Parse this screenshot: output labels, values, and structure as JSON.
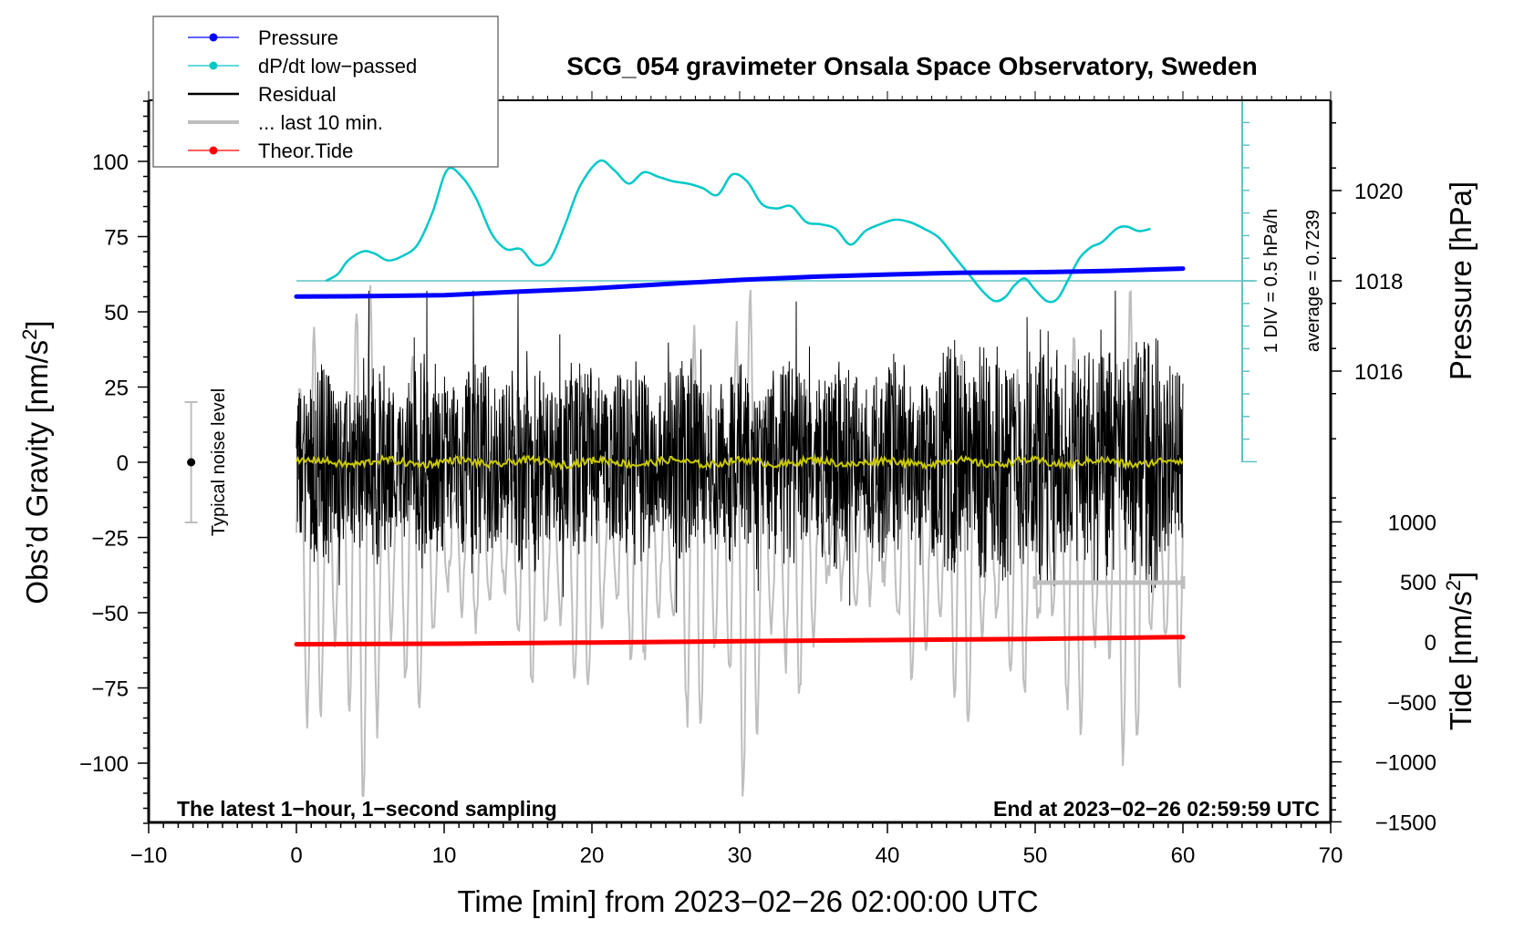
{
  "chart_data": {
    "type": "line",
    "title": "SCG_054 gravimeter Onsala Space Observatory, Sweden",
    "xlabel": "Time [min] from 2023−02−26 02:00:00 UTC",
    "ylabel_left": "Obs’d Gravity [nm/s²]",
    "ylabel_right_top": "Pressure [hPa]",
    "ylabel_right_bottom": "Tide [nm/s²]",
    "xlim": [
      -10,
      70
    ],
    "ylim_gravity": [
      -120,
      120
    ],
    "ylim_pressure": [
      1014,
      1022
    ],
    "ylim_tide": [
      -1500,
      1250
    ],
    "x_ticks": [
      -10,
      0,
      10,
      20,
      30,
      40,
      50,
      60,
      70
    ],
    "x_tick_labels": [
      "−10",
      "0",
      "10",
      "20",
      "30",
      "40",
      "50",
      "60",
      "70"
    ],
    "gravity_ticks": [
      100,
      75,
      50,
      25,
      0,
      -25,
      -50,
      -75,
      -100
    ],
    "gravity_tick_labels": [
      "100",
      "75",
      "50",
      "25",
      "0",
      "−25",
      "−50",
      "−75",
      "−100"
    ],
    "pressure_ticks": [
      1020,
      1018,
      1016
    ],
    "pressure_tick_labels": [
      "1020",
      "1018",
      "1016"
    ],
    "tide_ticks": [
      1000,
      500,
      0,
      -500,
      -1000,
      -1500
    ],
    "tide_tick_labels": [
      "1000",
      "500",
      "0",
      "−500",
      "−1000",
      "−1500"
    ],
    "legend": {
      "placement": "top-left",
      "entries": [
        {
          "label": "Pressure",
          "color": "#0000ff",
          "marker": "dot"
        },
        {
          "label": "dP/dt low−passed",
          "color": "#00c8c8",
          "marker": "dot"
        },
        {
          "label": "Residual",
          "color": "#000000",
          "marker": "line"
        },
        {
          "label": "... last 10 min.",
          "color": "#bebebe",
          "marker": "line"
        },
        {
          "label": "Theor.Tide",
          "color": "#ff0000",
          "marker": "dot"
        }
      ]
    },
    "series": [
      {
        "name": "Pressure",
        "axis": "pressure",
        "color": "#0000ff",
        "x": [
          0,
          5,
          10,
          15,
          20,
          25,
          30,
          35,
          40,
          45,
          50,
          55,
          60
        ],
        "values": [
          1017.65,
          1017.66,
          1017.68,
          1017.76,
          1017.83,
          1017.93,
          1018.02,
          1018.09,
          1018.14,
          1018.18,
          1018.19,
          1018.22,
          1018.27
        ]
      },
      {
        "name": "dP/dt low-passed",
        "axis": "dpdt_div",
        "color": "#00c8c8",
        "baseline_average": 0.7239,
        "div_size_hPa_per_h": 0.5,
        "x": [
          2,
          2.8,
          3.5,
          4.5,
          5.3,
          6.2,
          7.2,
          8.2,
          9.2,
          10.2,
          11.2,
          12.2,
          13.2,
          14.2,
          15.2,
          16.2,
          17.2,
          18.2,
          19.2,
          20.5,
          21.5,
          22.5,
          23.5,
          24.5,
          25.5,
          26.5,
          27.5,
          28.5,
          29.5,
          30.5,
          31.5,
          32.5,
          33.5,
          34.5,
          35.5,
          36.5,
          37.5,
          38.5,
          39.5,
          40.5,
          41.5,
          42.5,
          43.5,
          44.5,
          45.5,
          46.5,
          47.3,
          48.0,
          48.6,
          49.3,
          50.0,
          50.8,
          51.5,
          52.2,
          53.0,
          53.8,
          54.5,
          55.5,
          56.2,
          57.0,
          57.8
        ],
        "values": [
          0.0,
          0.3,
          0.9,
          1.3,
          1.2,
          0.9,
          1.1,
          1.6,
          3.0,
          4.9,
          4.6,
          3.6,
          2.1,
          1.4,
          1.4,
          0.7,
          1.0,
          2.5,
          4.2,
          5.3,
          4.9,
          4.3,
          4.8,
          4.6,
          4.4,
          4.3,
          4.1,
          3.8,
          4.7,
          4.4,
          3.4,
          3.2,
          3.3,
          2.6,
          2.5,
          2.3,
          1.6,
          2.2,
          2.5,
          2.7,
          2.6,
          2.3,
          1.9,
          1.1,
          0.3,
          -0.5,
          -0.9,
          -0.7,
          -0.2,
          0.1,
          -0.4,
          -0.9,
          -0.8,
          0.0,
          1.0,
          1.5,
          1.7,
          2.3,
          2.4,
          2.2,
          2.3
        ]
      },
      {
        "name": "Residual",
        "axis": "gravity",
        "color": "#000000",
        "x_range": [
          0,
          60
        ],
        "sampling": "1 second",
        "typical_envelope": 30,
        "extreme_range": [
          -50,
          57
        ]
      },
      {
        "name": "Residual smoothed",
        "axis": "gravity",
        "color": "#c8c800",
        "x_range": [
          0,
          60
        ],
        "approx_value": 0
      },
      {
        "name": "... last 10 min.",
        "axis": "gravity",
        "color": "#bebebe",
        "x_range": [
          0,
          60
        ],
        "note": "last 10 min (50–60) shown expanded over 0–60",
        "amplitude_range": [
          -120,
          80
        ]
      },
      {
        "name": "Theor.Tide",
        "axis": "tide",
        "color": "#ff0000",
        "x": [
          0,
          10,
          20,
          30,
          40,
          50,
          60
        ],
        "values": [
          -20,
          -15,
          -5,
          5,
          15,
          25,
          40
        ]
      }
    ],
    "annotations": {
      "noise_level": {
        "label": "Typical noise level",
        "x": -7,
        "center": 0,
        "range": [
          -20,
          20
        ]
      },
      "last10_bar": {
        "x_range": [
          50,
          60
        ],
        "gravity_value": -40
      },
      "dpdt_scale_label_1": "1 DIV = 0.5 hPa/h",
      "dpdt_scale_label_2": "average = 0.7239",
      "bottom_left": "The latest 1−hour, 1−second sampling",
      "bottom_right": "End at 2023−02−26 02:59:59 UTC"
    },
    "grid": false
  }
}
